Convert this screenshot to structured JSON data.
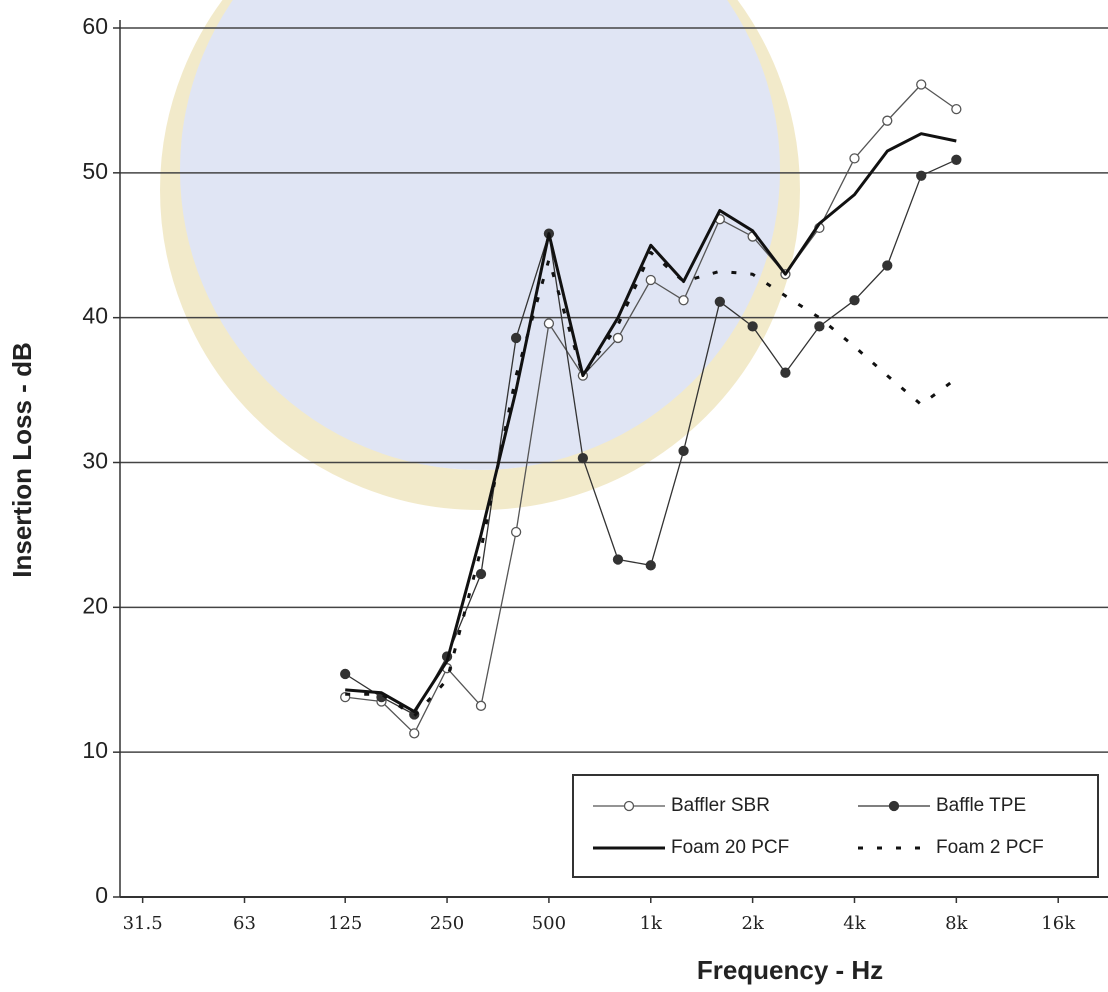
{
  "chart_data": {
    "type": "line",
    "x_label": "Frequency - Hz",
    "y_label": "Insertion Loss - dB",
    "x": [
      125,
      160,
      200,
      250,
      315,
      400,
      500,
      630,
      800,
      1000,
      1250,
      1600,
      2000,
      2500,
      3150,
      4000,
      5000,
      6300,
      8000
    ],
    "x_log": true,
    "xlim": [
      27,
      22000
    ],
    "xticks": [
      31.5,
      63,
      125,
      250,
      500,
      {
        "value": 1000,
        "label": "1k"
      },
      {
        "value": 2000,
        "label": "2k"
      },
      {
        "value": 4000,
        "label": "4k"
      },
      {
        "value": 8000,
        "label": "8k"
      },
      {
        "value": 16000,
        "label": "16k"
      }
    ],
    "ylim": [
      0,
      60
    ],
    "yticks": [
      0,
      10,
      20,
      30,
      40,
      50,
      60
    ],
    "grid": true,
    "legend": "lower right",
    "series": [
      {
        "name": "Baffler SBR",
        "color": "#555555",
        "marker": "open-circle",
        "line_style": "solid",
        "line_width": 1.3,
        "values": [
          13.8,
          13.5,
          11.3,
          15.8,
          13.2,
          25.2,
          39.6,
          36.0,
          38.6,
          42.6,
          41.2,
          46.8,
          45.6,
          43.0,
          46.2,
          51.0,
          53.6,
          56.1,
          54.4
        ]
      },
      {
        "name": "Baffle TPE",
        "color": "#333333",
        "marker": "filled-circle",
        "line_style": "solid",
        "line_width": 1.3,
        "values": [
          15.4,
          13.8,
          12.6,
          16.6,
          22.3,
          38.6,
          45.8,
          30.3,
          23.3,
          22.9,
          30.8,
          41.1,
          39.4,
          36.2,
          39.4,
          41.2,
          43.6,
          49.8,
          50.9
        ]
      },
      {
        "name": "Foam 20 PCF",
        "color": "#111111",
        "marker": "none",
        "line_style": "solid",
        "line_width": 3,
        "values": [
          14.3,
          14.1,
          12.8,
          16.3,
          25.0,
          35.0,
          45.8,
          36.0,
          40.0,
          45.0,
          42.5,
          47.4,
          46.0,
          43.0,
          46.5,
          48.5,
          51.5,
          52.7,
          52.2
        ]
      },
      {
        "name": "Foam 2 PCF",
        "color": "#111111",
        "marker": "none",
        "line_style": "dotted",
        "line_width": 3,
        "values": [
          14.0,
          14.0,
          12.5,
          15.0,
          24.0,
          36.0,
          44.0,
          36.0,
          39.5,
          44.5,
          42.5,
          43.2,
          43.0,
          41.5,
          40.0,
          38.0,
          36.0,
          34.0,
          35.8
        ]
      }
    ]
  }
}
